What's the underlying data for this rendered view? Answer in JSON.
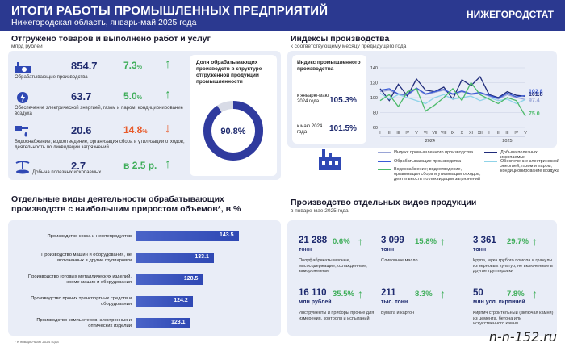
{
  "header": {
    "title": "ИТОГИ РАБОТЫ ПРОМЫШЛЕННЫХ ПРЕДПРИЯТИЙ",
    "subtitle": "Нижегородская область, январь-май 2025 года",
    "brand": "НИЖЕГОРОДСТАТ"
  },
  "shipments": {
    "title": "Отгружено товаров и выполнено работ и услуг",
    "unit": "млрд рублей",
    "rows": [
      {
        "icon": "factory-icon",
        "value": "854.7",
        "pct": "7.3",
        "unit": "%",
        "arrow": "↑",
        "dir": "up",
        "desc": "Обрабатывающие производства"
      },
      {
        "icon": "power-icon",
        "value": "63.7",
        "pct": "5.0",
        "unit": "%",
        "arrow": "↑",
        "dir": "up",
        "desc": "Обеспечение электрической энергией, газом и паром; кондиционирование воздуха"
      },
      {
        "icon": "water-icon",
        "value": "20.6",
        "pct": "14.8",
        "unit": "%",
        "arrow": "↓",
        "dir": "down",
        "desc": "Водоснабжение; водоотведение, организация сбора и утилизации отходов, деятельность по ликвидации загрязнений"
      },
      {
        "icon": "mining-icon",
        "value": "2.7",
        "pct": "в 2.5 р.",
        "unit": "",
        "arrow": "↑",
        "dir": "up",
        "desc": "Добыча полезных ископаемых"
      }
    ],
    "donut": {
      "label": "Доля обрабатывающих производств в структуре отгруженной продукции промышленности",
      "value": "90.8%",
      "fraction": 0.908
    }
  },
  "indices": {
    "title": "Индексы производства",
    "subtitle": "к соответствующему месяцу предыдущего года",
    "card_title": "Индекс промышленного производства",
    "row1_label": "к январю-маю 2024 года",
    "row1_value": "105.3%",
    "row2_label": "к маю 2024 года",
    "row2_value": "101.5%",
    "end_labels": [
      "102.8",
      "101.8",
      "97.4",
      "75.0"
    ],
    "legend": [
      {
        "name": "Индекс промышленного производства",
        "color": "#9aa5d6"
      },
      {
        "name": "Добыча полезных ископаемых",
        "color": "#1f2b7a"
      },
      {
        "name": "Обрабатывающие производства",
        "color": "#3b5bd6"
      },
      {
        "name": "Обеспечение электрической энергией, газом и паром; кондиционирование воздуха",
        "color": "#8fd3e8"
      },
      {
        "name": "Водоснабжение; водоотведение, организация сбора и утилизации отходов, деятельность по ликвидации загрязнений",
        "color": "#4dbb6b"
      }
    ]
  },
  "chart_data": [
    {
      "type": "line",
      "x": [
        "I",
        "II",
        "III",
        "IV",
        "V",
        "VI",
        "VII",
        "VIII",
        "IX",
        "X",
        "XI",
        "XII",
        "I",
        "II",
        "III",
        "IV",
        "V"
      ],
      "x_groups": [
        "2024",
        "2025"
      ],
      "ylim": [
        60,
        140
      ],
      "yticks": [
        60,
        80,
        100,
        120,
        140
      ],
      "grid": true,
      "series": [
        {
          "name": "Индекс промышленного производства",
          "color": "#9aa5d6",
          "values": [
            108,
            110,
            104,
            103,
            112,
            104,
            107,
            110,
            104,
            108,
            104,
            106,
            102,
            98,
            104,
            100,
            97.4
          ]
        },
        {
          "name": "Добыча полезных ископаемых",
          "color": "#1f2b7a",
          "values": [
            112,
            96,
            118,
            102,
            125,
            110,
            108,
            114,
            98,
            124,
            116,
            128,
            104,
            100,
            108,
            103,
            101.8
          ]
        },
        {
          "name": "Обрабатывающие производства",
          "color": "#3b5bd6",
          "values": [
            110,
            112,
            105,
            104,
            113,
            105,
            108,
            111,
            105,
            109,
            105,
            107,
            103,
            99,
            106,
            101,
            102.8
          ]
        },
        {
          "name": "Обеспечение электрической энергией, газом и паром; кондиционирование воздуха",
          "color": "#8fd3e8",
          "values": [
            106,
            98,
            104,
            100,
            96,
            92,
            100,
            104,
            98,
            100,
            102,
            96,
            100,
            96,
            98,
            92,
            97.4
          ]
        },
        {
          "name": "Водоснабжение; водоотведение, организация сбора и утилизации отходов, деятельность по ликвидации загрязнений",
          "color": "#4dbb6b",
          "values": [
            96,
            104,
            88,
            108,
            112,
            82,
            90,
            100,
            112,
            96,
            120,
            104,
            98,
            92,
            100,
            96,
            75.0
          ]
        }
      ]
    },
    {
      "type": "bar",
      "title": "Отдельные виды деятельности обрабатывающих производств с наибольшим приростом объемов*, в %",
      "categories": [
        "Производство кокса и нефтепродуктов",
        "Производство машин и оборудования, не включенных в другие группировки",
        "Производство готовых металлических изделий, кроме машин и оборудования",
        "Производство прочих транспортных средств и оборудования",
        "Производство компьютеров, электронных и оптических изделий"
      ],
      "values": [
        143.5,
        133.1,
        128.5,
        124.2,
        123.1
      ]
    }
  ],
  "barsection": {
    "title1": "Отдельные виды деятельности обрабатывающих",
    "title2": "производств с наибольшим приростом объемов*, в %",
    "labels": [
      "Производство кокса и нефтепродуктов",
      "Производство машин и оборудования, не включенных в другие группировки",
      "Производство готовых металлических изделий, кроме машин и оборудования",
      "Производство прочих транспортных средств и оборудования",
      "Производство компьютеров, электронных и оптических изделий"
    ],
    "values": [
      "143.5",
      "133.1",
      "128.5",
      "124.2",
      "123.1"
    ],
    "footnote": "* К январю-маю 2024 года"
  },
  "products": {
    "title": "Производство отдельных видов продукции",
    "subtitle": "в январе-мае 2025 года",
    "items": [
      {
        "value": "21 288",
        "unit": "тонн",
        "pct": "0.6%",
        "desc": "Полуфабрикаты мясные, мясосодержащие, охлажденные, замороженные"
      },
      {
        "value": "3 099",
        "unit": "тонн",
        "pct": "15.8%",
        "desc": "Сливочное масло"
      },
      {
        "value": "3 361",
        "unit": "тонн",
        "pct": "29.7%",
        "desc": "Крупа, мука грубого помола и гранулы из зерновых культур, не включенные в другие группировки"
      },
      {
        "value": "16 110",
        "unit": "млн рублей",
        "pct": "35.5%",
        "desc": "Инструменты и приборы прочие для измерения, контроля и испытаний"
      },
      {
        "value": "211",
        "unit": "тыс. тонн",
        "pct": "8.3%",
        "desc": "Бумага и картон"
      },
      {
        "value": "50",
        "unit": "млн усл. кирпичей",
        "pct": "7.8%",
        "desc": "Кирпич строительный (включая камни) из цемента, бетона или искусственного камня"
      }
    ]
  },
  "watermark": "n-n-152.ru"
}
